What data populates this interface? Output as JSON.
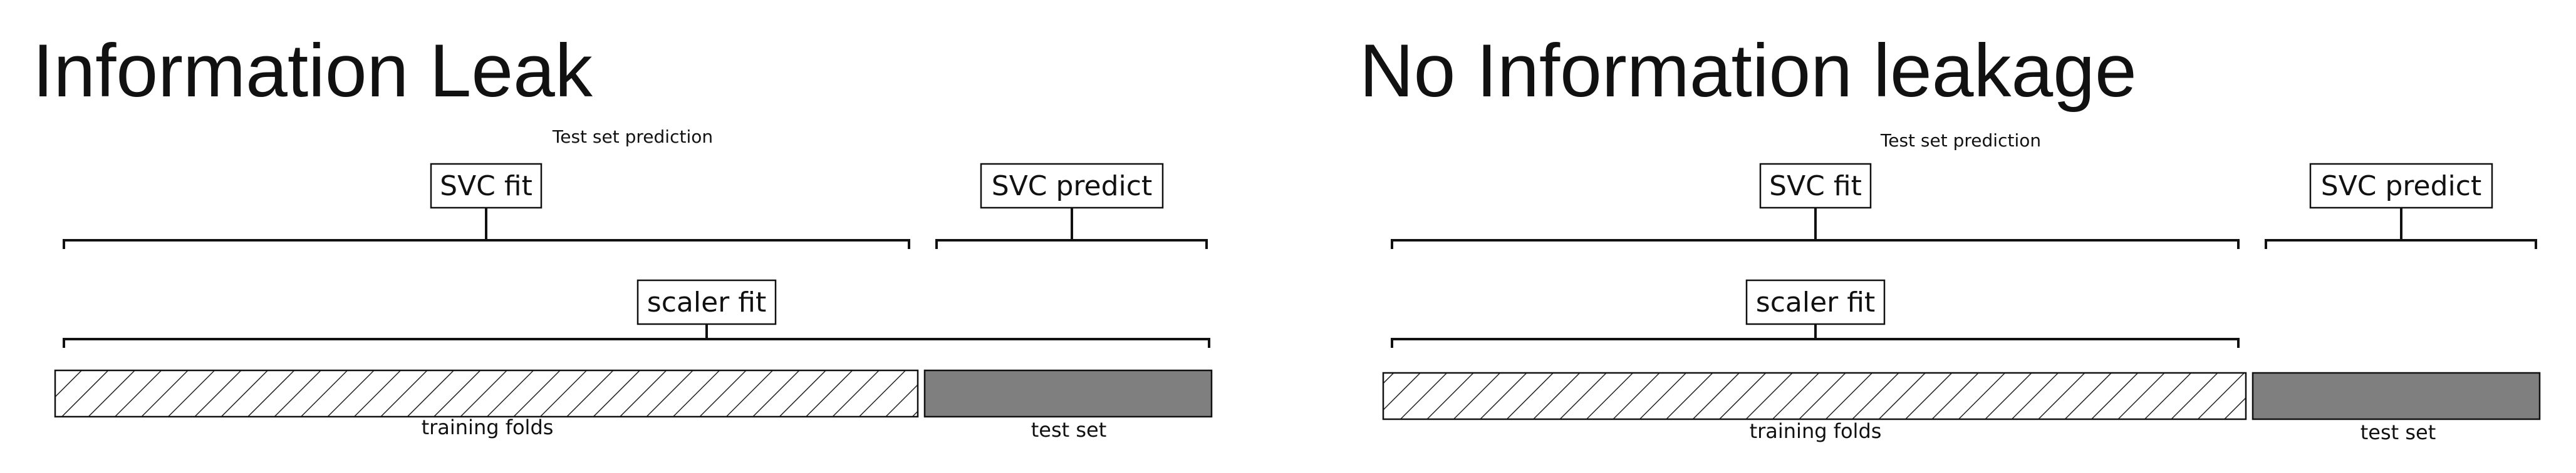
{
  "panels": [
    {
      "title": "Information Leak",
      "subtitle": "Test set prediction",
      "labels": {
        "svc_fit": "SVC fit",
        "svc_predict": "SVC predict",
        "scaler_fit": "scaler fit",
        "training": "training folds",
        "test": "test set"
      },
      "scaler_covers": "training folds + test set"
    },
    {
      "title": "No Information leakage",
      "subtitle": "Test set prediction",
      "labels": {
        "svc_fit": "SVC fit",
        "svc_predict": "SVC predict",
        "scaler_fit": "scaler fit",
        "training": "training folds",
        "test": "test set"
      },
      "scaler_covers": "training folds"
    }
  ],
  "colors": {
    "test_fill": "#7f7f7f",
    "stroke": "#111111",
    "hatch": "#222222"
  }
}
